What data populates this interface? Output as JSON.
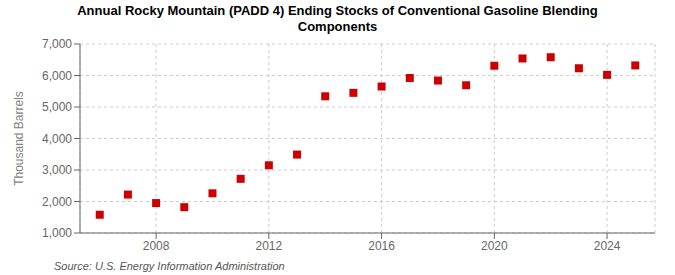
{
  "chart_data": {
    "type": "scatter",
    "title": "Annual Rocky Mountain (PADD 4) Ending Stocks of Conventional Gasoline Blending\nComponents",
    "ylabel": "Thousand Barrels",
    "source": "Source: U.S. Energy Information Administration",
    "x": [
      2006,
      2007,
      2008,
      2009,
      2010,
      2011,
      2012,
      2013,
      2014,
      2015,
      2016,
      2017,
      2018,
      2019,
      2020,
      2021,
      2022,
      2023,
      2024,
      2025
    ],
    "values": [
      1580,
      2220,
      1950,
      1820,
      2260,
      2720,
      3150,
      3490,
      5340,
      5450,
      5650,
      5920,
      5840,
      5690,
      6310,
      6540,
      6580,
      6230,
      6020,
      6320
    ],
    "color": "#cc0000",
    "marker": "square",
    "xlim": [
      2005.3,
      2025.7
    ],
    "xticks": [
      2008,
      2012,
      2016,
      2020,
      2024
    ],
    "ylim": [
      1000,
      7000
    ],
    "yticks": [
      {
        "value": 1000,
        "label": "1,000"
      },
      {
        "value": 2000,
        "label": "2,000"
      },
      {
        "value": 3000,
        "label": "3,000"
      },
      {
        "value": 4000,
        "label": "4,000"
      },
      {
        "value": 5000,
        "label": "5,000"
      },
      {
        "value": 6000,
        "label": "6,000"
      },
      {
        "value": 7000,
        "label": "7,000"
      }
    ],
    "grid": true
  }
}
